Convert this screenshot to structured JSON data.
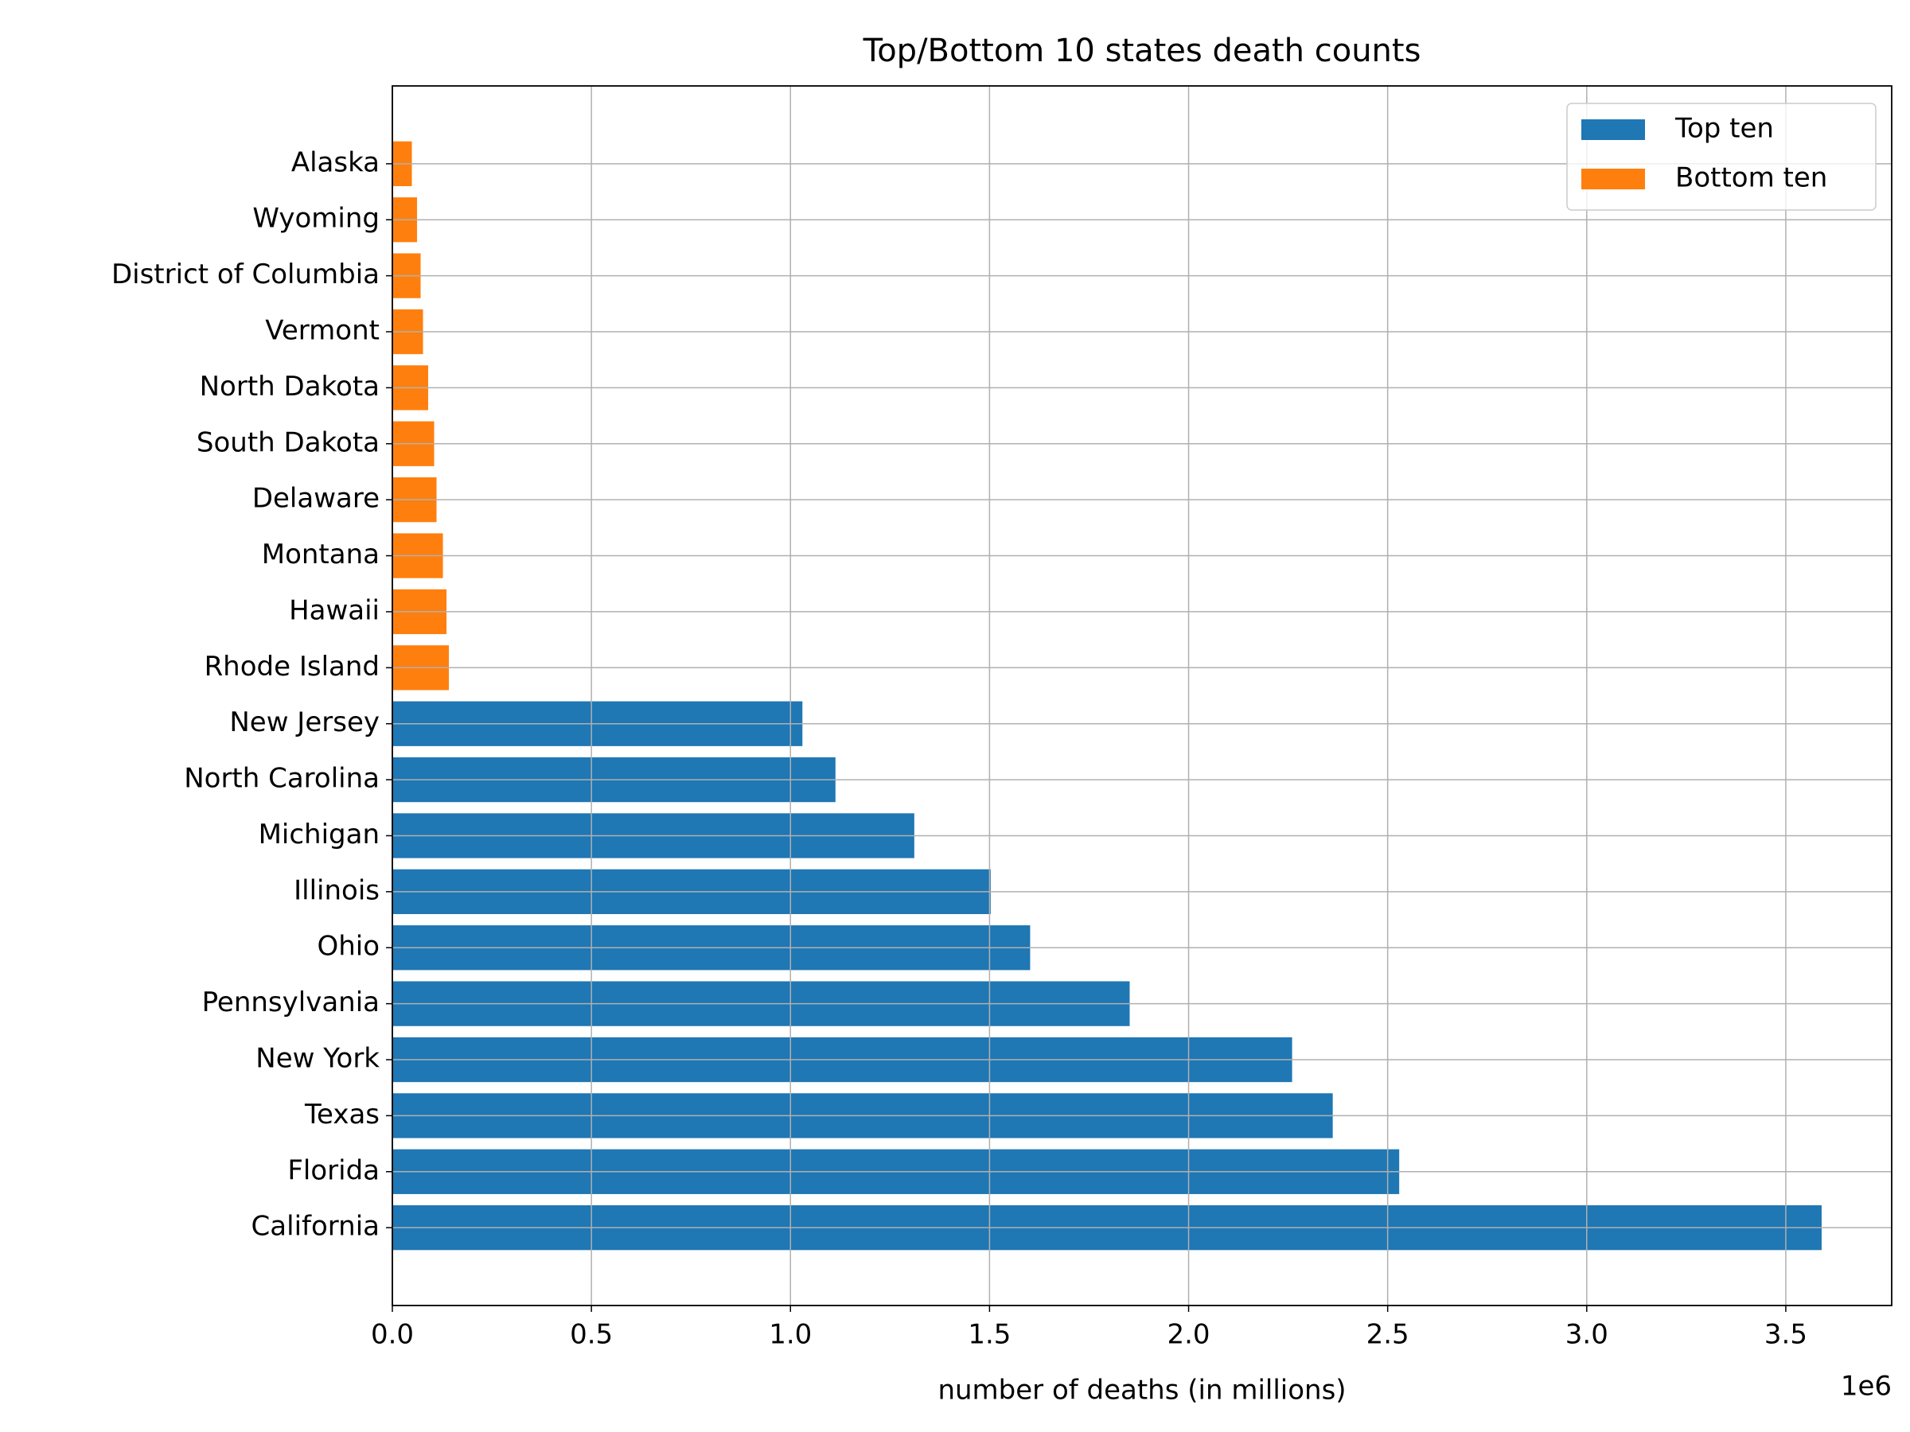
{
  "chart_data": {
    "type": "barh",
    "title": "Top/Bottom 10 states death counts",
    "x_label": "number of deaths (in millions)",
    "x_offset_label": "1e6",
    "categories": [
      "California",
      "Florida",
      "Texas",
      "New York",
      "Pennsylvania",
      "Ohio",
      "Illinois",
      "Michigan",
      "North Carolina",
      "New Jersey",
      "Rhode Island",
      "Hawaii",
      "Montana",
      "Delaware",
      "South Dakota",
      "North Dakota",
      "Vermont",
      "District of Columbia",
      "Wyoming",
      "Alaska"
    ],
    "series": [
      {
        "name": "Top ten",
        "color": "#1f77b4",
        "values": [
          3590000,
          2529000,
          2362000,
          2260000,
          1852000,
          1602000,
          1503000,
          1311000,
          1113000,
          1030000,
          null,
          null,
          null,
          null,
          null,
          null,
          null,
          null,
          null,
          null
        ]
      },
      {
        "name": "Bottom ten",
        "color": "#ff7f0e",
        "values": [
          null,
          null,
          null,
          null,
          null,
          null,
          null,
          null,
          null,
          null,
          142000,
          136000,
          127000,
          111000,
          105000,
          90000,
          77000,
          71000,
          62000,
          49000
        ]
      }
    ],
    "xlim": [
      0,
      3766000
    ],
    "xticks": [
      {
        "value": 0,
        "label": "0.0"
      },
      {
        "value": 500000,
        "label": "0.5"
      },
      {
        "value": 1000000,
        "label": "1.0"
      },
      {
        "value": 1500000,
        "label": "1.5"
      },
      {
        "value": 2000000,
        "label": "2.0"
      },
      {
        "value": 2500000,
        "label": "2.5"
      },
      {
        "value": 3000000,
        "label": "3.0"
      },
      {
        "value": 3500000,
        "label": "3.5"
      }
    ],
    "grid": true,
    "legend": "upper right"
  }
}
